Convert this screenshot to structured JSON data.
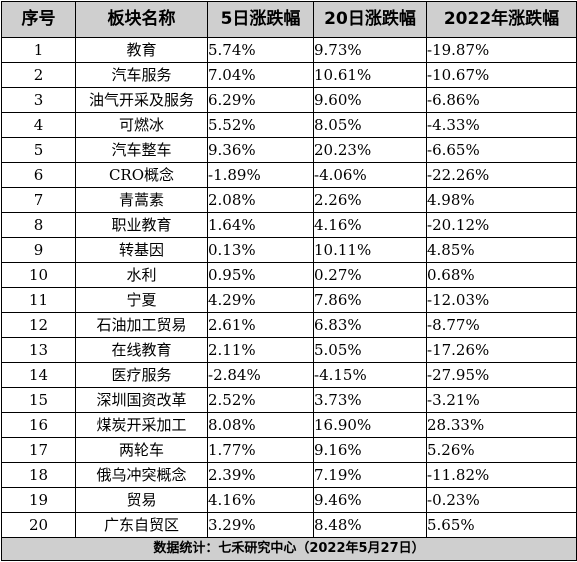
{
  "table": {
    "headers": [
      "序号",
      "板块名称",
      "5日涨跌幅",
      "20日涨跌幅",
      "2022年涨跌幅"
    ],
    "rows": [
      [
        "1",
        "教育",
        "5.74%",
        "9.73%",
        "-19.87%"
      ],
      [
        "2",
        "汽车服务",
        "7.04%",
        "10.61%",
        "-10.67%"
      ],
      [
        "3",
        "油气开采及服务",
        "6.29%",
        "9.60%",
        "-6.86%"
      ],
      [
        "4",
        "可燃冰",
        "5.52%",
        "8.05%",
        "-4.33%"
      ],
      [
        "5",
        "汽车整车",
        "9.36%",
        "20.23%",
        "-6.65%"
      ],
      [
        "6",
        "CRO概念",
        "-1.89%",
        "-4.06%",
        "-22.26%"
      ],
      [
        "7",
        "青蒿素",
        "2.08%",
        "2.26%",
        "4.98%"
      ],
      [
        "8",
        "职业教育",
        "1.64%",
        "4.16%",
        "-20.12%"
      ],
      [
        "9",
        "转基因",
        "0.13%",
        "10.11%",
        "4.85%"
      ],
      [
        "10",
        "水利",
        "0.95%",
        "0.27%",
        "0.68%"
      ],
      [
        "11",
        "宁夏",
        "4.29%",
        "7.86%",
        "-12.03%"
      ],
      [
        "12",
        "石油加工贸易",
        "2.61%",
        "6.83%",
        "-8.77%"
      ],
      [
        "13",
        "在线教育",
        "2.11%",
        "5.05%",
        "-17.26%"
      ],
      [
        "14",
        "医疗服务",
        "-2.84%",
        "-4.15%",
        "-27.95%"
      ],
      [
        "15",
        "深圳国资改革",
        "2.52%",
        "3.73%",
        "-3.21%"
      ],
      [
        "16",
        "煤炭开采加工",
        "8.08%",
        "16.90%",
        "28.33%"
      ],
      [
        "17",
        "两轮车",
        "1.77%",
        "9.16%",
        "5.26%"
      ],
      [
        "18",
        "俄乌冲突概念",
        "2.39%",
        "7.19%",
        "-11.82%"
      ],
      [
        "19",
        "贸易",
        "4.16%",
        "9.46%",
        "-0.23%"
      ],
      [
        "20",
        "广东自贸区",
        "3.29%",
        "8.48%",
        "5.65%"
      ]
    ],
    "footer": "数据统计：七禾研究中心（2022年5月27日）"
  }
}
